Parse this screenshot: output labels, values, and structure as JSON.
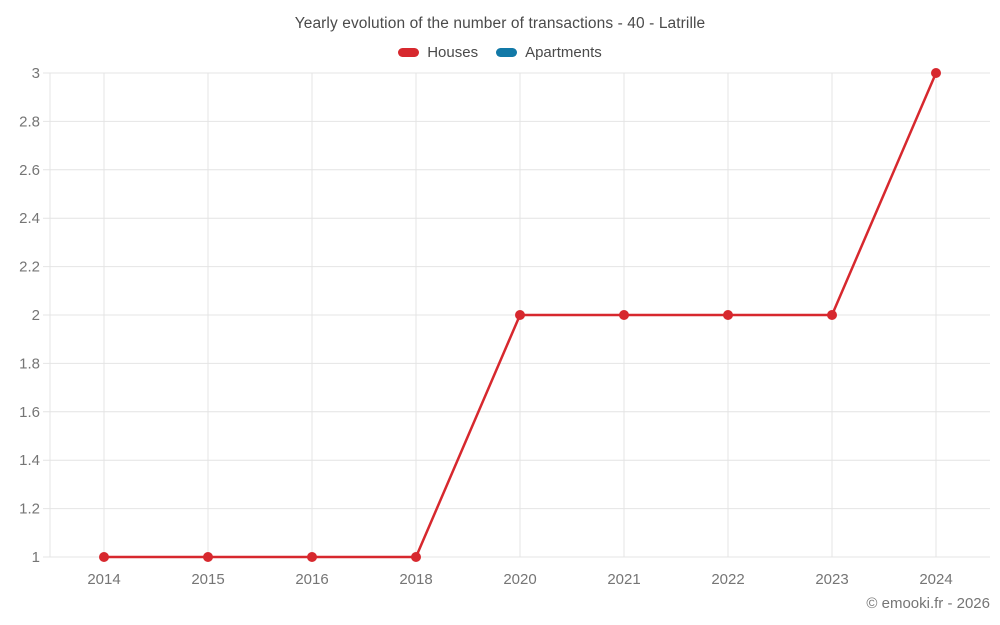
{
  "title": "Yearly evolution of the number of transactions - 40 - Latrille",
  "footer": "© emooki.fr - 2026",
  "colors": {
    "houses": "#d7282e",
    "apartments": "#1279a7",
    "grid": "#e4e4e4",
    "axis_text": "#757575",
    "title_text": "#4a4a4a",
    "background": "#ffffff"
  },
  "chart_data": {
    "type": "line",
    "title": "Yearly evolution of the number of transactions - 40 - Latrille",
    "xlabel": "",
    "ylabel": "",
    "categories": [
      "2014",
      "2015",
      "2016",
      "2018",
      "2020",
      "2021",
      "2022",
      "2023",
      "2024"
    ],
    "series": [
      {
        "name": "Houses",
        "color": "#d7282e",
        "values": [
          1,
          1,
          1,
          1,
          2,
          2,
          2,
          2,
          3
        ]
      },
      {
        "name": "Apartments",
        "color": "#1279a7",
        "values": []
      }
    ],
    "ylim": [
      1,
      3
    ],
    "yticks": [
      "1",
      "1.2",
      "1.4",
      "1.6",
      "1.8",
      "2",
      "2.2",
      "2.4",
      "2.6",
      "2.8",
      "3"
    ],
    "grid": true,
    "legend_position": "top",
    "marker": "circle"
  }
}
